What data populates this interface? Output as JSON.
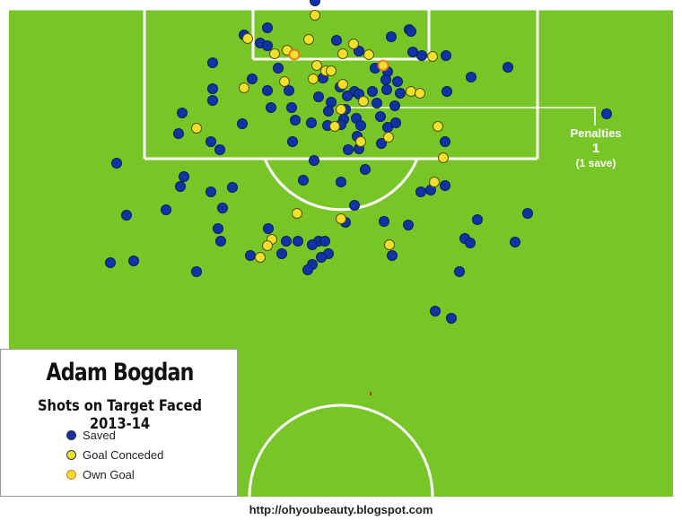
{
  "title": "Adam Bogdan",
  "subtitle": "Shots on Target Faced 2013-14",
  "legend": [
    {
      "label": "Saved",
      "color": "#1133a8"
    },
    {
      "label": "Goal Conceded",
      "color": "#f2e02c"
    },
    {
      "label": "Own Goal",
      "color": "#f5a22b"
    }
  ],
  "penalties": {
    "label": "Penalties",
    "count": "1",
    "note": "(1 save)"
  },
  "credit": "http://ohyoubeauty.blogspot.com",
  "colors": {
    "pitch": "#77c527",
    "lines": "#ffffff",
    "saved": "#1133a8",
    "goal": "#f2e02c",
    "own_goal": "#f5a22b"
  },
  "chart_data": {
    "type": "scatter",
    "title": "Adam Bogdan",
    "subtitle": "Shots on Target Faced 2013-14",
    "series": [
      {
        "name": "Saved",
        "points": [
          [
            351,
            1
          ],
          [
            298,
            31
          ],
          [
            456,
            33
          ],
          [
            272,
            39
          ],
          [
            290,
            48
          ],
          [
            298,
            51
          ],
          [
            375,
            45
          ],
          [
            436,
            41
          ],
          [
            458,
            35
          ],
          [
            400,
            57
          ],
          [
            460,
            58
          ],
          [
            470,
            62
          ],
          [
            497,
            62
          ],
          [
            237,
            70
          ],
          [
            281,
            88
          ],
          [
            310,
            76
          ],
          [
            418,
            76
          ],
          [
            432,
            80
          ],
          [
            430,
            89
          ],
          [
            443,
            91
          ],
          [
            525,
            86
          ],
          [
            566,
            75
          ],
          [
            237,
            99
          ],
          [
            237,
            112
          ],
          [
            298,
            101
          ],
          [
            322,
            101
          ],
          [
            360,
            87
          ],
          [
            379,
            97
          ],
          [
            395,
            102
          ],
          [
            387,
            107
          ],
          [
            400,
            105
          ],
          [
            415,
            102
          ],
          [
            431,
            100
          ],
          [
            446,
            104
          ],
          [
            498,
            102
          ],
          [
            203,
            126
          ],
          [
            270,
            138
          ],
          [
            302,
            120
          ],
          [
            325,
            120
          ],
          [
            355,
            108
          ],
          [
            369,
            114
          ],
          [
            420,
            115
          ],
          [
            440,
            118
          ],
          [
            366,
            124
          ],
          [
            385,
            122
          ],
          [
            383,
            133
          ],
          [
            397,
            132
          ],
          [
            424,
            130
          ],
          [
            441,
            137
          ],
          [
            676,
            127
          ],
          [
            199,
            149
          ],
          [
            235,
            158
          ],
          [
            245,
            167
          ],
          [
            329,
            134
          ],
          [
            347,
            137
          ],
          [
            326,
            158
          ],
          [
            365,
            140
          ],
          [
            380,
            139
          ],
          [
            402,
            140
          ],
          [
            398,
            152
          ],
          [
            388,
            167
          ],
          [
            400,
            166
          ],
          [
            425,
            160
          ],
          [
            432,
            142
          ],
          [
            496,
            158
          ],
          [
            130,
            182
          ],
          [
            350,
            179
          ],
          [
            407,
            189
          ],
          [
            205,
            197
          ],
          [
            201,
            208
          ],
          [
            235,
            214
          ],
          [
            259,
            209
          ],
          [
            338,
            201
          ],
          [
            380,
            203
          ],
          [
            469,
            214
          ],
          [
            480,
            212
          ],
          [
            496,
            207
          ],
          [
            141,
            240
          ],
          [
            185,
            234
          ],
          [
            248,
            232
          ],
          [
            395,
            229
          ],
          [
            428,
            247
          ],
          [
            455,
            251
          ],
          [
            532,
            245
          ],
          [
            588,
            238
          ],
          [
            299,
            255
          ],
          [
            243,
            255
          ],
          [
            246,
            269
          ],
          [
            319,
            269
          ],
          [
            332,
            269
          ],
          [
            355,
            269
          ],
          [
            362,
            269
          ],
          [
            385,
            248
          ],
          [
            348,
            273
          ],
          [
            366,
            283
          ],
          [
            358,
            287
          ],
          [
            348,
            295
          ],
          [
            343,
            301
          ],
          [
            437,
            285
          ],
          [
            518,
            266
          ],
          [
            524,
            271
          ],
          [
            512,
            303
          ],
          [
            574,
            270
          ],
          [
            123,
            293
          ],
          [
            149,
            291
          ],
          [
            219,
            303
          ],
          [
            279,
            285
          ],
          [
            314,
            283
          ],
          [
            485,
            347
          ],
          [
            503,
            355
          ]
        ]
      },
      {
        "name": "Goal Conceded",
        "points": [
          [
            351,
            17
          ],
          [
            276,
            43
          ],
          [
            344,
            44
          ],
          [
            394,
            49
          ],
          [
            306,
            60
          ],
          [
            320,
            56
          ],
          [
            382,
            60
          ],
          [
            411,
            61
          ],
          [
            482,
            63
          ],
          [
            353,
            73
          ],
          [
            363,
            79
          ],
          [
            369,
            79
          ],
          [
            272,
            98
          ],
          [
            317,
            91
          ],
          [
            349,
            88
          ],
          [
            382,
            94
          ],
          [
            458,
            102
          ],
          [
            468,
            104
          ],
          [
            380,
            122
          ],
          [
            405,
            113
          ],
          [
            219,
            143
          ],
          [
            373,
            141
          ],
          [
            402,
            158
          ],
          [
            433,
            153
          ],
          [
            488,
            141
          ],
          [
            494,
            176
          ],
          [
            331,
            238
          ],
          [
            380,
            244
          ],
          [
            484,
            203
          ],
          [
            303,
            267
          ],
          [
            298,
            274
          ],
          [
            434,
            273
          ],
          [
            290,
            287
          ]
        ]
      },
      {
        "name": "Own Goal",
        "points": [
          [
            328,
            61
          ],
          [
            427,
            73
          ]
        ]
      }
    ]
  }
}
